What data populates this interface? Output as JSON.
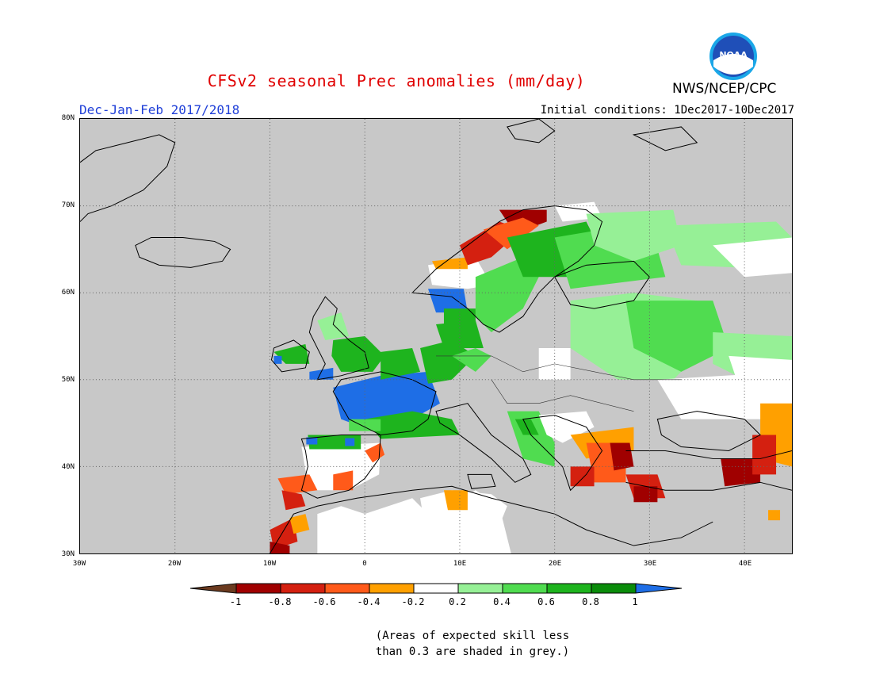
{
  "header": {
    "title": "CFSv2 seasonal Prec anomalies (mm/day)",
    "season": "Dec-Jan-Feb 2017/2018",
    "initial_conditions": "Initial conditions: 1Dec2017-10Dec2017",
    "organization": "NWS/NCEP/CPC",
    "logo_text": "NOAA"
  },
  "map": {
    "lat_labels": [
      "80N",
      "70N",
      "60N",
      "50N",
      "40N",
      "30N"
    ],
    "lon_labels": [
      "30W",
      "20W",
      "10W",
      "0",
      "10E",
      "20E",
      "30E",
      "40E"
    ],
    "background_color": "#c8c8c8"
  },
  "legend": {
    "labels": [
      "-1",
      "-0.8",
      "-0.6",
      "-0.4",
      "-0.2",
      "0.2",
      "0.4",
      "0.6",
      "0.8",
      "1"
    ],
    "colors": [
      "#6b3a1f",
      "#a00000",
      "#d42010",
      "#ff5a1a",
      "#ffa000",
      "#ffffff",
      "#96f096",
      "#50dc50",
      "#1eb41e",
      "#0a8c0a",
      "#1e6ee6"
    ]
  },
  "note": {
    "line1": "(Areas of expected skill less",
    "line2": "than 0.3 are shaded in grey.)"
  }
}
